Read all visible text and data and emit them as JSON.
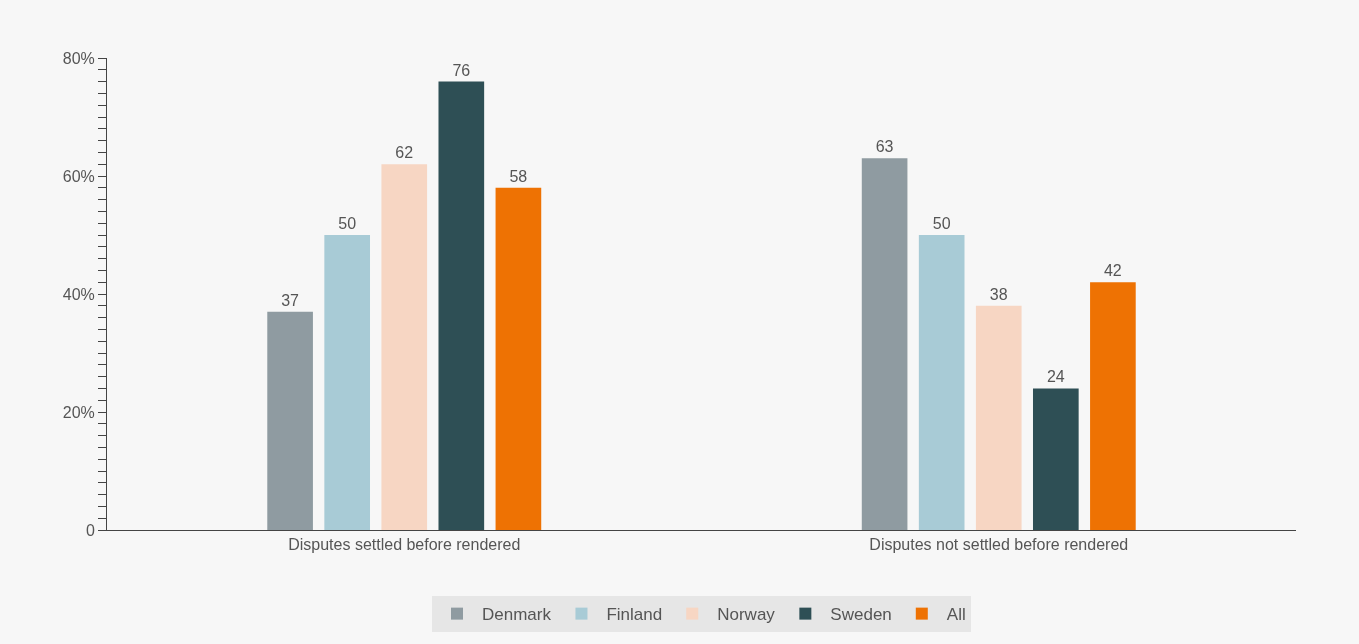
{
  "chart_data": {
    "type": "bar",
    "categories": [
      "Disputes settled before rendered",
      "Disputes not settled before rendered"
    ],
    "series": [
      {
        "name": "Denmark",
        "color": "#8f9ba1",
        "values": [
          37,
          63
        ]
      },
      {
        "name": "Finland",
        "color": "#a8cbd6",
        "values": [
          50,
          50
        ]
      },
      {
        "name": "Norway",
        "color": "#f7d6c3",
        "values": [
          62,
          38
        ]
      },
      {
        "name": "Sweden",
        "color": "#2e4f55",
        "values": [
          76,
          24
        ]
      },
      {
        "name": "All",
        "color": "#ee7203",
        "values": [
          58,
          42
        ]
      }
    ],
    "data_labels": true,
    "ylim": [
      0,
      80
    ],
    "yticks": [
      0,
      {
        "value": 2,
        "label": null
      },
      {
        "value": 4,
        "label": null
      },
      {
        "value": 6,
        "label": null
      },
      {
        "value": 8,
        "label": null
      },
      {
        "value": 10,
        "label": null
      },
      {
        "value": 12,
        "label": null
      },
      {
        "value": 14,
        "label": null
      },
      {
        "value": 16,
        "label": null
      },
      {
        "value": 18,
        "label": null
      },
      {
        "value": 20,
        "label": "20%"
      },
      {
        "value": 22,
        "label": null
      },
      {
        "value": 24,
        "label": null
      },
      {
        "value": 26,
        "label": null
      },
      {
        "value": 28,
        "label": null
      },
      {
        "value": 30,
        "label": null
      },
      {
        "value": 32,
        "label": null
      },
      {
        "value": 34,
        "label": null
      },
      {
        "value": 36,
        "label": null
      },
      {
        "value": 38,
        "label": null
      },
      {
        "value": 40,
        "label": "40%"
      },
      {
        "value": 42,
        "label": null
      },
      {
        "value": 44,
        "label": null
      },
      {
        "value": 46,
        "label": null
      },
      {
        "value": 48,
        "label": null
      },
      {
        "value": 50,
        "label": null
      },
      {
        "value": 52,
        "label": null
      },
      {
        "value": 54,
        "label": null
      },
      {
        "value": 56,
        "label": null
      },
      {
        "value": 58,
        "label": null
      },
      {
        "value": 60,
        "label": "60%"
      },
      {
        "value": 62,
        "label": null
      },
      {
        "value": 64,
        "label": null
      },
      {
        "value": 66,
        "label": null
      },
      {
        "value": 68,
        "label": null
      },
      {
        "value": 70,
        "label": null
      },
      {
        "value": 72,
        "label": null
      },
      {
        "value": 74,
        "label": null
      },
      {
        "value": 76,
        "label": null
      },
      {
        "value": 78,
        "label": null
      },
      {
        "value": 80,
        "label": "80%"
      }
    ],
    "grid": false,
    "legend": "bottom"
  }
}
